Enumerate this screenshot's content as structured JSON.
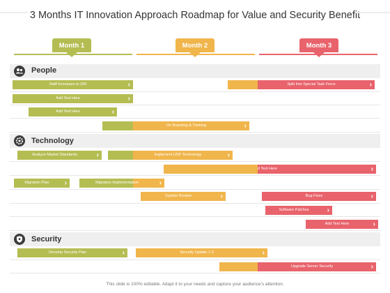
{
  "title": "3 Months IT Innovation Approach Roadmap for Value and Security Benefit",
  "colors": {
    "green": "#b4bd52",
    "orange": "#f0b54b",
    "red": "#e8636b",
    "icon": "#3c3c3c"
  },
  "months": [
    {
      "label": "Month 1",
      "color": "#b4bd52"
    },
    {
      "label": "Month 2",
      "color": "#f0b54b"
    },
    {
      "label": "Month 3",
      "color": "#e8636b"
    }
  ],
  "sections": [
    {
      "label": "People",
      "icon": "people-icon"
    },
    {
      "label": "Technology",
      "icon": "gear-icon"
    },
    {
      "label": "Security",
      "icon": "shield-icon"
    }
  ],
  "bars": {
    "staff": "Staff Increases to 200",
    "add1": "Add Text Here",
    "add2": "Add Text Here",
    "split": "Split Into Special Task Force",
    "onboarding": "On Boarding & Training",
    "analyze": "Analyze Market Standards",
    "implement_usp": "Implement USP Technology",
    "add3": "Add Text Here",
    "migration_plan": "Migration Plan",
    "migration_impl": "Migration Implementation",
    "system_review": "System Review",
    "bug_fixes": "Bug Fixes",
    "software_patches": "Software Patches",
    "add4": "Add Text Here",
    "develop_security": "Develop Security Plan",
    "security_update": "Security Update 1.0",
    "upgrade_server": "Upgrade Server Security"
  },
  "footer": "This slide is 100% editable. Adapt it to your needs and capture your audience's attention."
}
